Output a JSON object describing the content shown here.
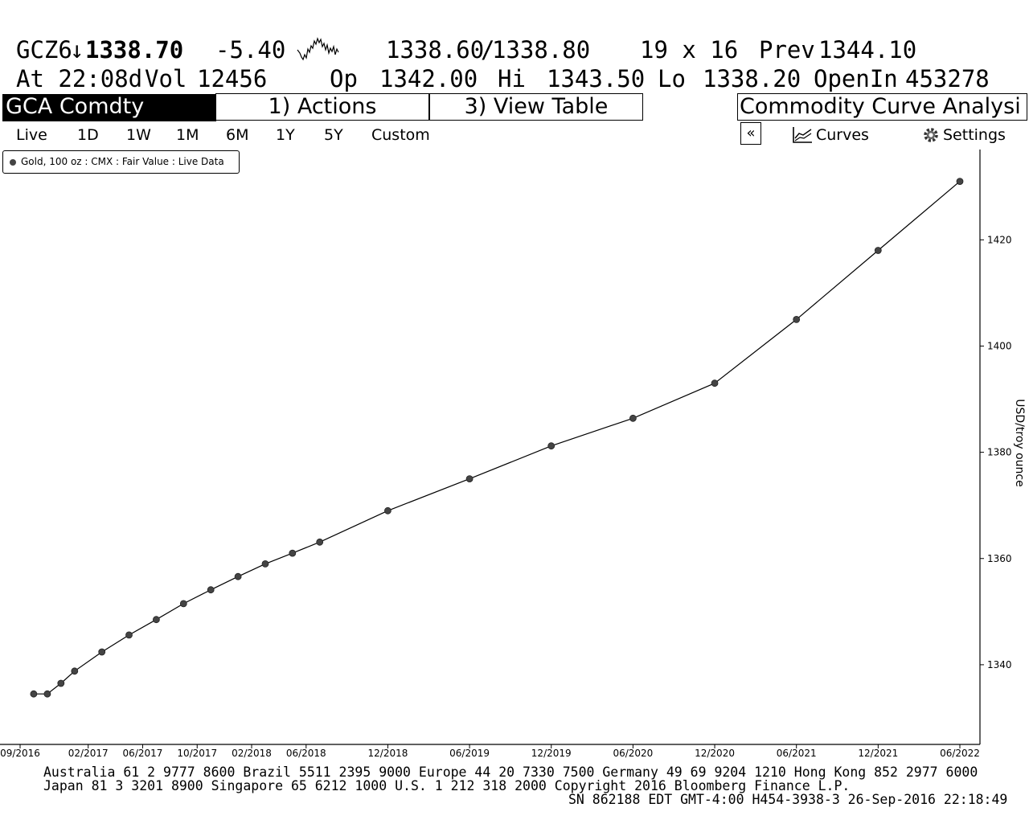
{
  "quote": {
    "ticker": "GCZ6",
    "arrow": "↓",
    "last": "1338.70",
    "change": "-5.40",
    "bid": "1338.60",
    "sep": "/",
    "ask": "1338.80",
    "size": "19 x 16",
    "prev_label": "Prev",
    "prev": "1344.10",
    "time": "At 22:08d",
    "vol_label": "Vol",
    "vol": "12456",
    "op_label": "Op",
    "open": "1342.00",
    "hi_label": "Hi",
    "high": "1343.50",
    "lo_label": "Lo",
    "low": "1338.20",
    "oi_label": "OpenIn",
    "open_interest": "453278"
  },
  "tabs": {
    "security": "GCA Comdty",
    "actions": "1) Actions",
    "view_table": "3) View Table",
    "function_title": "Commodity Curve Analysi"
  },
  "periods": [
    "Live",
    "1D",
    "1W",
    "1M",
    "6M",
    "1Y",
    "5Y",
    "Custom"
  ],
  "tools": {
    "collapse": "«",
    "curves": "Curves",
    "settings": "Settings",
    "curves_icon": "curves-chart-icon",
    "settings_icon": "gear-icon"
  },
  "legend": {
    "label": "Gold, 100 oz : CMX : Fair Value : Live Data"
  },
  "chart_data": {
    "type": "line",
    "series": [
      {
        "name": "Gold, 100 oz : CMX : Fair Value : Live Data",
        "x": [
          "2016-10",
          "2016-11",
          "2016-12",
          "2017-01",
          "2017-03",
          "2017-05",
          "2017-07",
          "2017-09",
          "2017-11",
          "2018-01",
          "2018-03",
          "2018-05",
          "2018-07",
          "2018-12",
          "2019-06",
          "2019-12",
          "2020-06",
          "2020-12",
          "2021-06",
          "2021-12",
          "2022-06"
        ],
        "values": [
          1334.5,
          1334.5,
          1336.5,
          1338.8,
          1342.4,
          1345.6,
          1348.5,
          1351.5,
          1354.1,
          1356.6,
          1359.0,
          1361.0,
          1363.1,
          1369.0,
          1375.0,
          1381.2,
          1386.4,
          1393.0,
          1405.0,
          1418.0,
          1431.0
        ]
      }
    ],
    "x_ticks": [
      "09/2016",
      "02/2017",
      "06/2017",
      "10/2017",
      "02/2018",
      "06/2018",
      "12/2018",
      "06/2019",
      "12/2019",
      "06/2020",
      "12/2020",
      "06/2021",
      "12/2021",
      "06/2022"
    ],
    "y_ticks": [
      1340,
      1360,
      1380,
      1400,
      1420
    ],
    "ylabel": "USD/troy ounce",
    "xlim": [
      "2016-09",
      "2022-06"
    ],
    "ylim": [
      1325,
      1437
    ],
    "y_axis_side": "right",
    "grid": false,
    "legend_position": "top-left",
    "line_color": "#000000",
    "marker_color": "#444444"
  },
  "footer": {
    "line1": "Australia 61 2 9777 8600 Brazil 5511 2395 9000 Europe 44 20 7330 7500 Germany 49 69 9204 1210 Hong Kong 852 2977 6000",
    "line2": "Japan 81 3 3201 8900         Singapore 65 6212 1000       U.S. 1 212 318 2000         Copyright 2016 Bloomberg Finance L.P.",
    "line3": "SN 862188 EDT  GMT-4:00 H454-3938-3 26-Sep-2016 22:18:49"
  }
}
